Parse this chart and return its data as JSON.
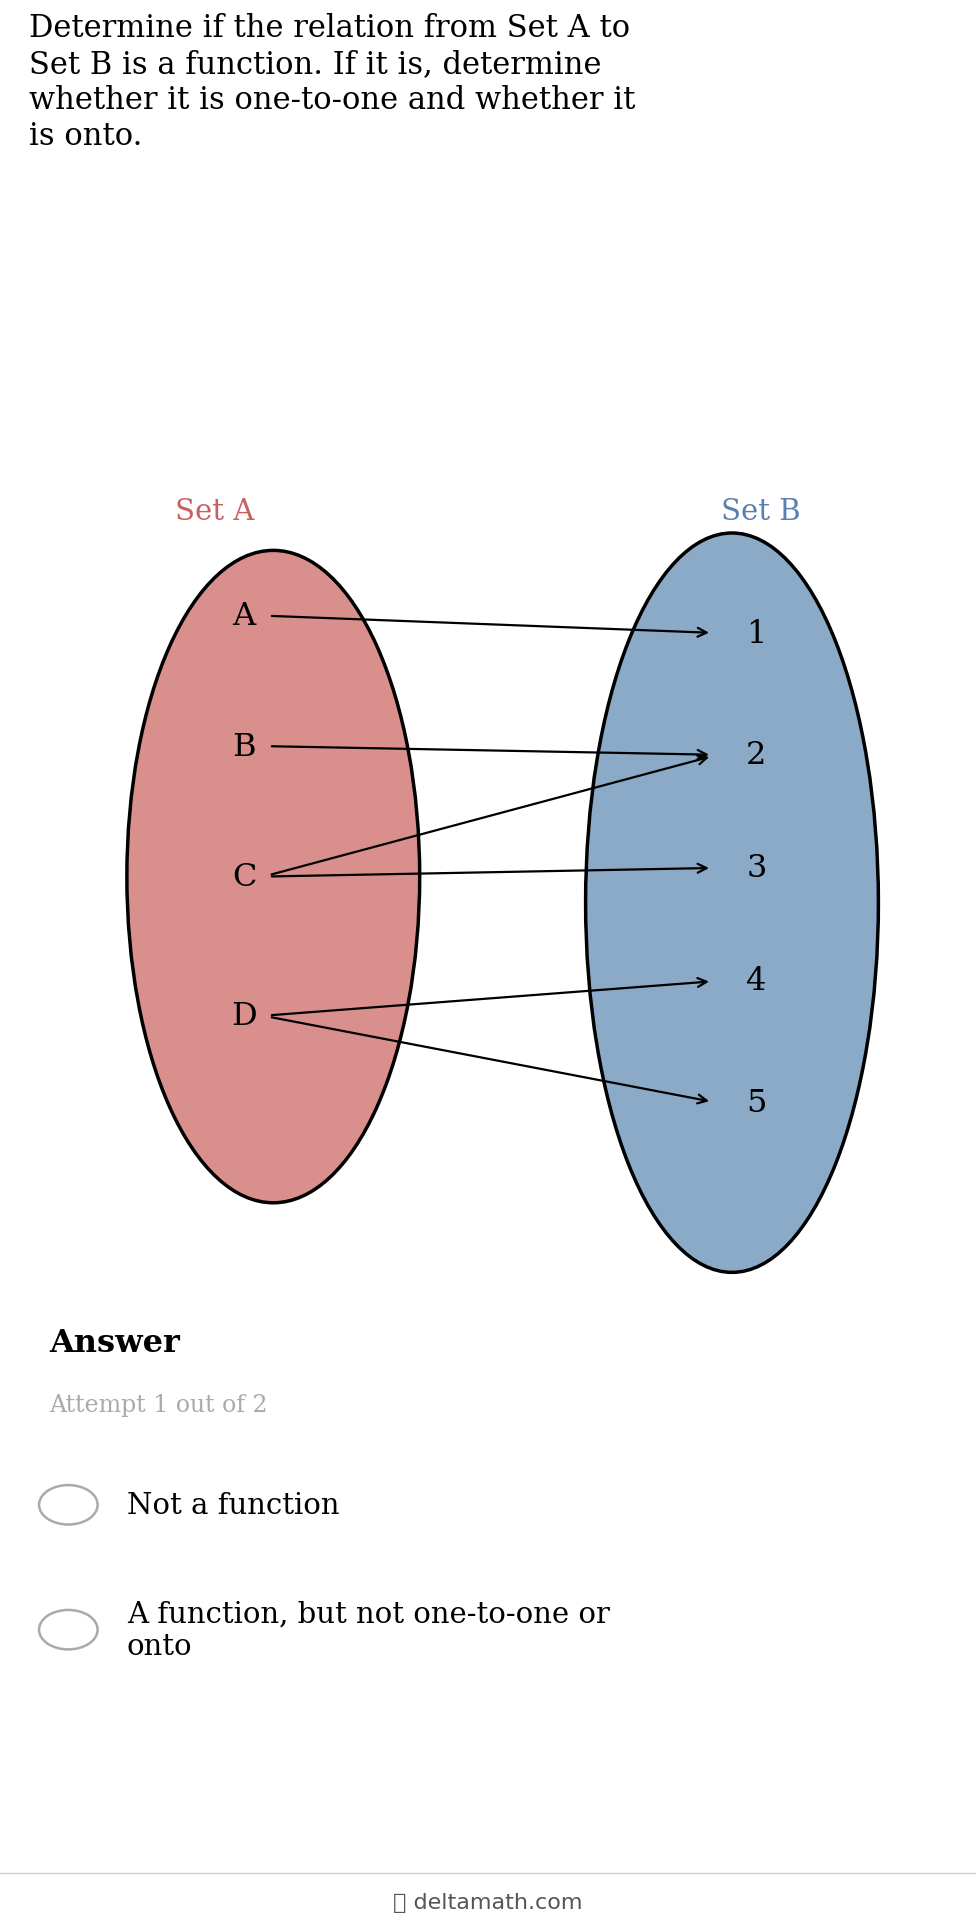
{
  "title_text": "Determine if the relation from Set A to\nSet B is a function. If it is, determine\nwhether it is one-to-one and whether it\nis onto.",
  "set_a_label": "Set A",
  "set_b_label": "Set B",
  "set_a_color": "#d9908c",
  "set_b_color": "#8aaac8",
  "set_a_elements": [
    "A",
    "B",
    "C",
    "D"
  ],
  "set_b_elements": [
    "1",
    "2",
    "3",
    "4",
    "5"
  ],
  "arrows": [
    [
      "A",
      "1"
    ],
    [
      "B",
      "2"
    ],
    [
      "C",
      "2"
    ],
    [
      "C",
      "3"
    ],
    [
      "D",
      "4"
    ],
    [
      "D",
      "5"
    ]
  ],
  "answer_label": "Answer",
  "attempt_label": "Attempt 1 out of 2",
  "choices": [
    "Not a function",
    "A function, but not one-to-one or\nonto"
  ],
  "bg_color_top": "#ffffff",
  "bg_color_bottom": "#f0f0f5",
  "footer_text": "deltamath.com",
  "title_fontsize": 22,
  "label_fontsize": 21,
  "element_fontsize": 23,
  "answer_fontsize": 23,
  "attempt_fontsize": 17,
  "choice_fontsize": 21
}
